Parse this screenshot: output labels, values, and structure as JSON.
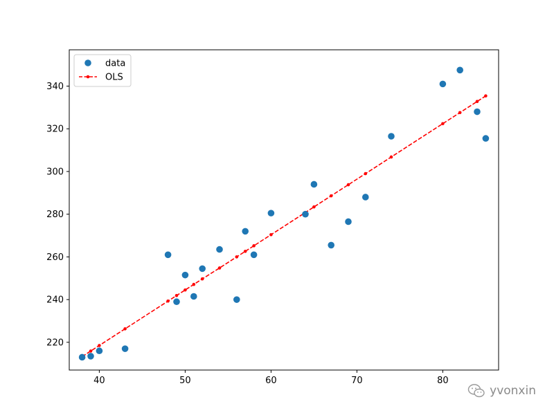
{
  "chart_data": {
    "type": "scatter",
    "title": "",
    "xlabel": "",
    "ylabel": "",
    "xlim": [
      36.5,
      86.5
    ],
    "ylim": [
      207,
      357
    ],
    "xticks": [
      40,
      50,
      60,
      70,
      80
    ],
    "yticks": [
      220,
      240,
      260,
      280,
      300,
      320,
      340
    ],
    "grid": false,
    "legend_position": "top-left",
    "series": [
      {
        "name": "data",
        "kind": "scatter",
        "color": "#1f77b4",
        "x": [
          38,
          39,
          40,
          43,
          48,
          49,
          50,
          51,
          52,
          54,
          56,
          57,
          58,
          60,
          64,
          65,
          67,
          69,
          71,
          74,
          80,
          82,
          84,
          85
        ],
        "y": [
          213,
          213.5,
          216,
          217,
          261,
          239,
          251.5,
          241.5,
          254.5,
          263.5,
          240,
          272,
          261,
          280.5,
          280,
          294,
          265.5,
          276.5,
          288,
          316.5,
          341,
          347.5,
          328,
          315.5
        ]
      },
      {
        "name": "OLS",
        "kind": "line",
        "color": "#ff0000",
        "style": "dashed-with-points",
        "x": [
          38,
          39,
          40,
          43,
          48,
          49,
          50,
          51,
          52,
          54,
          56,
          57,
          58,
          60,
          64,
          65,
          67,
          69,
          71,
          74,
          80,
          82,
          84,
          85
        ],
        "y": [
          213.3,
          215.9,
          218.5,
          226.3,
          239.3,
          241.9,
          244.5,
          247.1,
          249.7,
          254.8,
          260.0,
          262.6,
          265.2,
          270.4,
          280.8,
          283.4,
          288.6,
          293.8,
          299.0,
          306.8,
          322.4,
          327.6,
          332.8,
          335.4
        ]
      }
    ]
  },
  "watermark": {
    "text": "yvonxin",
    "icon": "wechat-icon"
  }
}
